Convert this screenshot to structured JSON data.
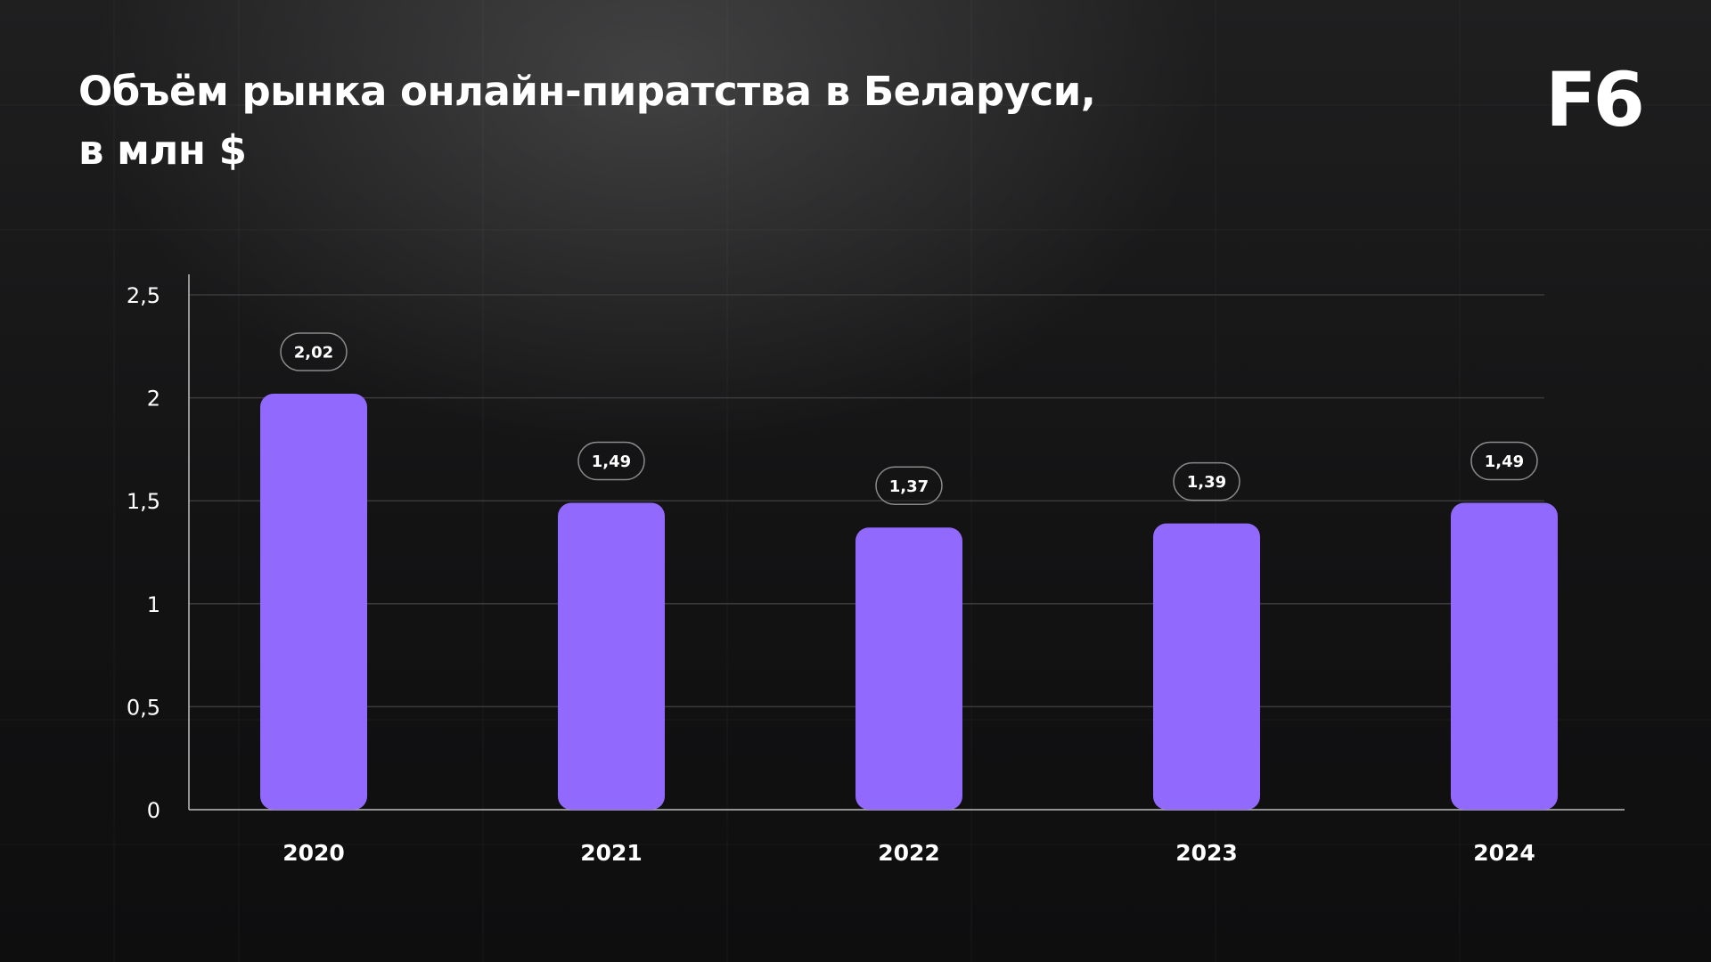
{
  "header": {
    "title_line1": "Объём рынка онлайн-пиратства в Беларуси,",
    "title_line2": "в млн $",
    "logo": "F6"
  },
  "colors": {
    "bar": "#9169fc",
    "axis": "#bdbdbd",
    "gridline": "#3a3a3c",
    "label_border": "#8a8a8a",
    "text": "#ffffff"
  },
  "chart_data": {
    "type": "bar",
    "title": "Объём рынка онлайн-пиратства в Беларуси, в млн $",
    "categories": [
      "2020",
      "2021",
      "2022",
      "2023",
      "2024"
    ],
    "values": [
      2.02,
      1.49,
      1.37,
      1.39,
      1.49
    ],
    "value_labels": [
      "2,02",
      "1,49",
      "1,37",
      "1,39",
      "1,49"
    ],
    "yticks": [
      0,
      0.5,
      1,
      1.5,
      2,
      2.5
    ],
    "ytick_labels": [
      "0",
      "0,5",
      "1",
      "1,5",
      "2",
      "2,5"
    ],
    "ylim": [
      0,
      2.5
    ],
    "grid": true,
    "legend": "none",
    "xlabel": "",
    "ylabel": ""
  }
}
